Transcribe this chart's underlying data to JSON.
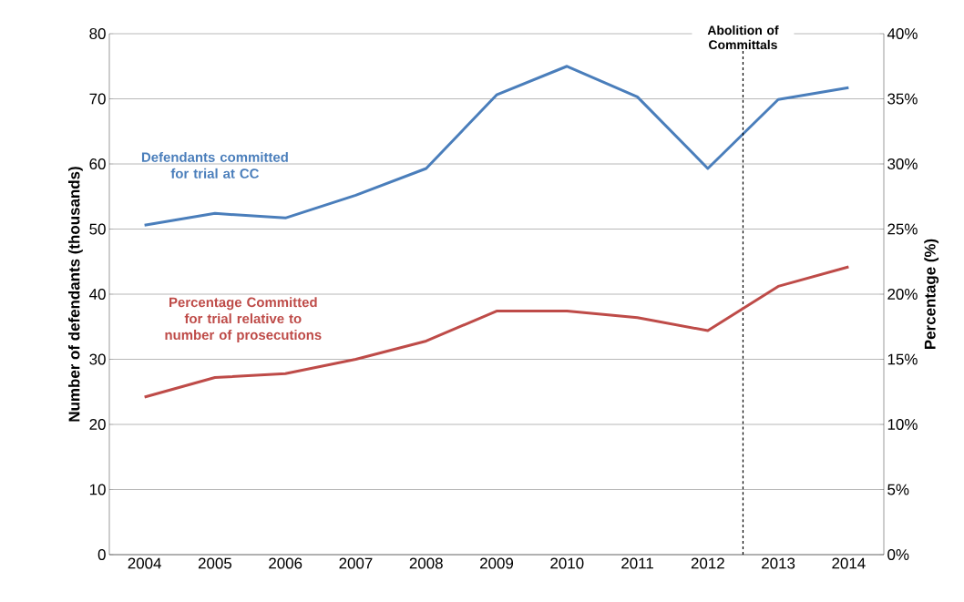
{
  "chart_data": {
    "type": "line",
    "x": [
      2004,
      2005,
      2006,
      2007,
      2008,
      2009,
      2010,
      2011,
      2012,
      2013,
      2014
    ],
    "xlim": [
      2003.5,
      2014.5
    ],
    "xticks": [
      2004,
      2005,
      2006,
      2007,
      2008,
      2009,
      2010,
      2011,
      2012,
      2013,
      2014
    ],
    "ylabel": "Number of defendants (thousands)",
    "y2label": "Percentage (%)",
    "ylim": [
      0,
      80
    ],
    "yticks": [
      0,
      10,
      20,
      30,
      40,
      50,
      60,
      70,
      80
    ],
    "y2lim": [
      0,
      40
    ],
    "y2ticks": [
      {
        "value": 0,
        "label": "0%"
      },
      {
        "value": 5,
        "label": "5%"
      },
      {
        "value": 10,
        "label": "10%"
      },
      {
        "value": 15,
        "label": "15%"
      },
      {
        "value": 20,
        "label": "20%"
      },
      {
        "value": 25,
        "label": "25%"
      },
      {
        "value": 30,
        "label": "30%"
      },
      {
        "value": 35,
        "label": "35%"
      },
      {
        "value": 40,
        "label": "40%"
      }
    ],
    "series": [
      {
        "name": "Defendants committed for trial at CC",
        "color": "#4a7ebb",
        "values": [
          50.6,
          52.4,
          51.7,
          55.2,
          59.3,
          70.6,
          75.0,
          70.3,
          59.3,
          69.9,
          71.7
        ]
      },
      {
        "name": "Percentage Committed for trial relative to number of prosecutions",
        "color": "#be4b48",
        "axis": "y2",
        "values": [
          12.1,
          13.6,
          13.9,
          15.0,
          16.4,
          18.7,
          18.7,
          18.2,
          17.2,
          20.6,
          22.1
        ]
      }
    ],
    "ref_lines": [
      {
        "axis": "x",
        "value": 2012.5,
        "label": "Abolition of Committals",
        "color": "#000000",
        "line_style": "dashed"
      }
    ],
    "grid": "y"
  }
}
